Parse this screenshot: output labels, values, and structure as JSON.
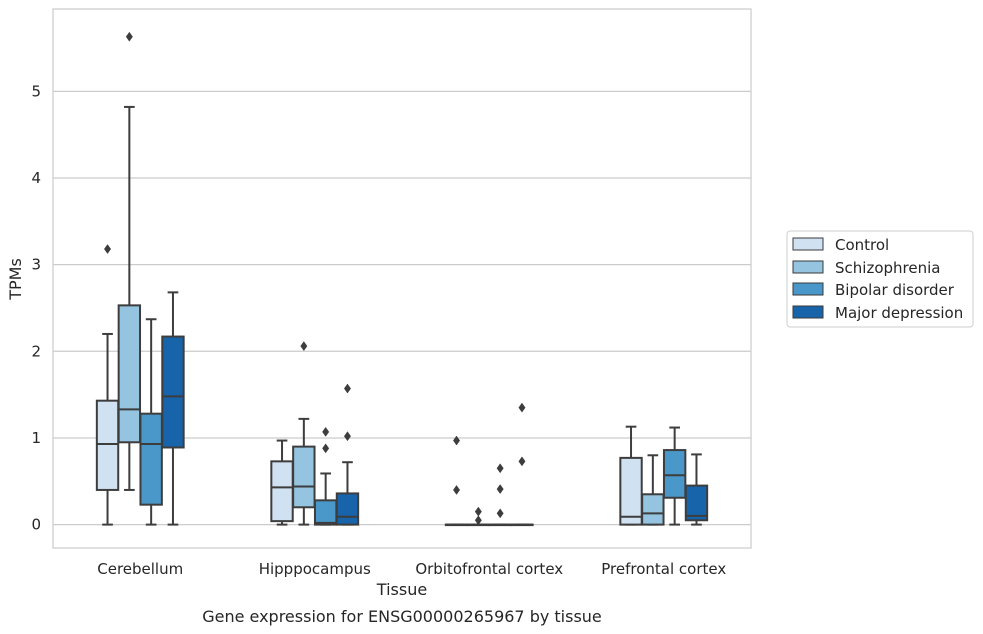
{
  "chart_data": {
    "type": "box",
    "caption": "Gene expression for ENSG00000265967 by tissue",
    "xlabel": "Tissue",
    "ylabel": "TPMs",
    "ylim": [
      -0.27,
      5.95
    ],
    "yticks": [
      0,
      1,
      2,
      3,
      4,
      5
    ],
    "grid": "horizontal",
    "legend_position": "right",
    "categories": [
      "Cerebellum",
      "Hipppocampus",
      "Orbitofrontal cortex",
      "Prefrontal cortex"
    ],
    "series": [
      {
        "name": "Control",
        "color": "#d0e1f2",
        "boxes": [
          {
            "whislo": 0.0,
            "q1": 0.4,
            "med": 0.93,
            "q3": 1.43,
            "whishi": 2.2,
            "fliers": [
              3.18
            ]
          },
          {
            "whislo": 0.0,
            "q1": 0.04,
            "med": 0.43,
            "q3": 0.73,
            "whishi": 0.97,
            "fliers": []
          },
          {
            "whislo": 0.0,
            "q1": 0.0,
            "med": 0.0,
            "q3": 0.0,
            "whishi": 0.0,
            "fliers": [
              0.4,
              0.97
            ]
          },
          {
            "whislo": 0.0,
            "q1": 0.0,
            "med": 0.09,
            "q3": 0.77,
            "whishi": 1.13,
            "fliers": []
          }
        ]
      },
      {
        "name": "Schizophrenia",
        "color": "#94c4df",
        "boxes": [
          {
            "whislo": 0.4,
            "q1": 0.95,
            "med": 1.33,
            "q3": 2.53,
            "whishi": 4.82,
            "fliers": [
              5.63
            ]
          },
          {
            "whislo": 0.0,
            "q1": 0.2,
            "med": 0.44,
            "q3": 0.9,
            "whishi": 1.22,
            "fliers": [
              2.06
            ]
          },
          {
            "whislo": 0.0,
            "q1": 0.0,
            "med": 0.0,
            "q3": 0.0,
            "whishi": 0.0,
            "fliers": [
              0.05,
              0.15
            ]
          },
          {
            "whislo": 0.0,
            "q1": 0.0,
            "med": 0.13,
            "q3": 0.35,
            "whishi": 0.8,
            "fliers": []
          }
        ]
      },
      {
        "name": "Bipolar disorder",
        "color": "#4a98c9",
        "boxes": [
          {
            "whislo": 0.0,
            "q1": 0.23,
            "med": 0.93,
            "q3": 1.28,
            "whishi": 2.37,
            "fliers": []
          },
          {
            "whislo": 0.0,
            "q1": 0.0,
            "med": 0.02,
            "q3": 0.28,
            "whishi": 0.59,
            "fliers": [
              0.88,
              1.07
            ]
          },
          {
            "whislo": 0.0,
            "q1": 0.0,
            "med": 0.0,
            "q3": 0.0,
            "whishi": 0.0,
            "fliers": [
              0.13,
              0.41,
              0.65
            ]
          },
          {
            "whislo": 0.0,
            "q1": 0.31,
            "med": 0.57,
            "q3": 0.86,
            "whishi": 1.12,
            "fliers": []
          }
        ]
      },
      {
        "name": "Major depression",
        "color": "#1764ab",
        "boxes": [
          {
            "whislo": 0.0,
            "q1": 0.89,
            "med": 1.48,
            "q3": 2.17,
            "whishi": 2.68,
            "fliers": []
          },
          {
            "whislo": 0.0,
            "q1": 0.0,
            "med": 0.09,
            "q3": 0.36,
            "whishi": 0.72,
            "fliers": [
              1.02,
              1.57
            ]
          },
          {
            "whislo": 0.0,
            "q1": 0.0,
            "med": 0.0,
            "q3": 0.0,
            "whishi": 0.0,
            "fliers": [
              0.73,
              1.35
            ]
          },
          {
            "whislo": 0.0,
            "q1": 0.05,
            "med": 0.1,
            "q3": 0.45,
            "whishi": 0.81,
            "fliers": []
          }
        ]
      }
    ]
  }
}
